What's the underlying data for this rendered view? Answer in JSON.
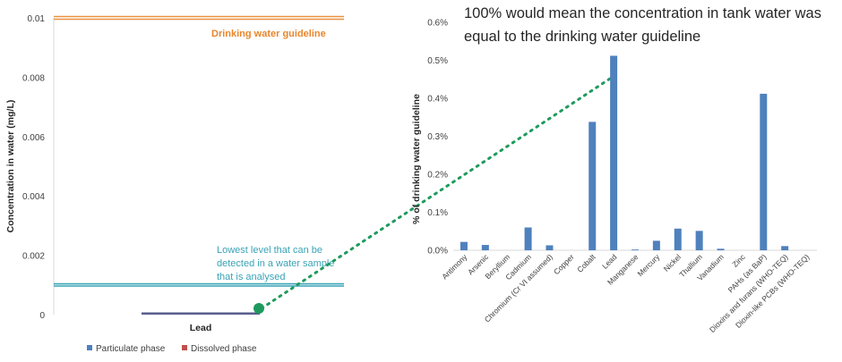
{
  "colors": {
    "bar": "#4f81bd",
    "lead_bar": "#5a5e8c",
    "dissolved": "#c0504d",
    "guideline": "#e8862c",
    "detection": "#3aa3b6",
    "connector": "#1f9a5e"
  },
  "chart_data": [
    {
      "type": "bar",
      "categories": [
        "Lead"
      ],
      "series": [
        {
          "name": "Particulate phase",
          "values": [
            2e-05
          ]
        },
        {
          "name": "Dissolved phase",
          "values": [
            0
          ]
        }
      ],
      "xlabel": "Lead",
      "ylabel": "Concentration in water (mg/L)",
      "ylim": [
        0,
        0.01
      ],
      "yticks": [
        "0",
        "0.002",
        "0.004",
        "0.006",
        "0.008",
        "0.01"
      ],
      "grid": false,
      "legend": "bottom",
      "reference_lines": [
        {
          "label": "Drinking water guideline",
          "value": 0.01
        },
        {
          "label": "Lowest level that can be detected in a water sample that is analysed",
          "value": 0.001
        }
      ],
      "annotations": {
        "guideline": "Drinking water guideline",
        "detection_lines": [
          "Lowest level that can be",
          "detected in a water sample",
          "that is analysed"
        ]
      }
    },
    {
      "type": "bar",
      "categories": [
        "Antimony",
        "Arsenic",
        "Beryllium",
        "Cadmium",
        "Chromium (Cr VI assumed)",
        "Copper",
        "Cobalt",
        "Lead",
        "Manganese",
        "Mercury",
        "Nickel",
        "Thallium",
        "Vanadium",
        "Zinc",
        "PAHs (as BaP)",
        "Dioxins and furans (WHO-TEQ)",
        "Dioxin-like PCBs (WHO-TEQ)"
      ],
      "values": [
        0.022,
        0.014,
        0.0,
        0.06,
        0.013,
        0.0,
        0.338,
        0.512,
        0.002,
        0.025,
        0.057,
        0.051,
        0.004,
        0.0,
        0.412,
        0.011,
        0.0
      ],
      "ylabel": "% of drinking water guideline",
      "ylim": [
        0,
        0.6
      ],
      "yticks": [
        "0.0%",
        "0.1%",
        "0.2%",
        "0.3%",
        "0.4%",
        "0.5%",
        "0.6%"
      ],
      "grid": false,
      "annotation_lines": [
        "100% would mean the concentration in tank water was",
        "equal to the drinking water guideline"
      ]
    }
  ]
}
